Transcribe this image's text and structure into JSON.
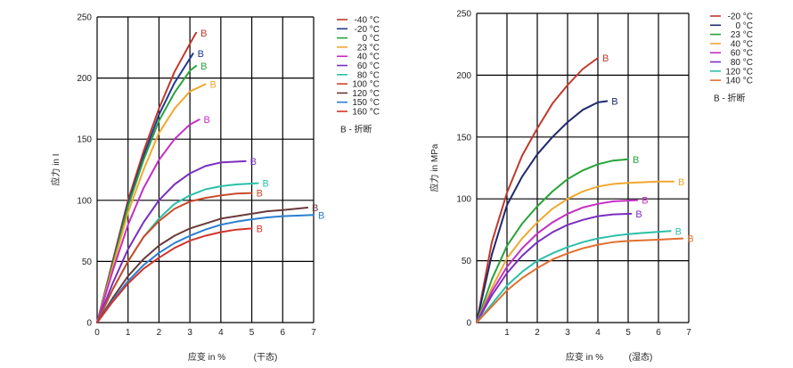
{
  "chart_data": [
    {
      "type": "line",
      "title": "",
      "xlabel": "应变 in %",
      "xlabel_note": "(干态)",
      "ylabel": "应力 in I",
      "xlim": [
        0,
        7
      ],
      "ylim": [
        0,
        250
      ],
      "xticks": [
        "0",
        "1",
        "2",
        "3",
        "4",
        "5",
        "6",
        "7"
      ],
      "yticks": [
        "0",
        "50",
        "100",
        "150",
        "200",
        "250"
      ],
      "grid": true,
      "legend_position": "right",
      "legend_note": "B - 折断",
      "break_marker": "B",
      "series": [
        {
          "name": "-40 °C",
          "color": "#c0392b",
          "break": true,
          "points": [
            [
              0,
              0
            ],
            [
              0.5,
              50
            ],
            [
              1,
              100
            ],
            [
              1.5,
              140
            ],
            [
              2,
              175
            ],
            [
              2.5,
              205
            ],
            [
              3,
              228
            ],
            [
              3.2,
              237
            ]
          ]
        },
        {
          "name": "-20 °C",
          "color": "#1f3a93",
          "break": true,
          "points": [
            [
              0,
              0
            ],
            [
              0.5,
              48
            ],
            [
              1,
              97
            ],
            [
              1.5,
              136
            ],
            [
              2,
              170
            ],
            [
              2.5,
              196
            ],
            [
              2.9,
              212
            ],
            [
              3.1,
              220
            ]
          ]
        },
        {
          "name": "0 °C",
          "color": "#27a33a",
          "break": true,
          "points": [
            [
              0,
              0
            ],
            [
              0.5,
              47
            ],
            [
              1,
              95
            ],
            [
              1.5,
              133
            ],
            [
              2,
              165
            ],
            [
              2.5,
              188
            ],
            [
              3,
              206
            ],
            [
              3.2,
              210
            ]
          ]
        },
        {
          "name": "23 °C",
          "color": "#f0a830",
          "break": true,
          "points": [
            [
              0,
              0
            ],
            [
              0.5,
              45
            ],
            [
              1,
              90
            ],
            [
              1.5,
              125
            ],
            [
              2,
              155
            ],
            [
              2.5,
              175
            ],
            [
              3,
              189
            ],
            [
              3.5,
              195
            ]
          ]
        },
        {
          "name": "40 °C",
          "color": "#c42fc4",
          "break": true,
          "points": [
            [
              0,
              0
            ],
            [
              0.5,
              42
            ],
            [
              1,
              80
            ],
            [
              1.5,
              110
            ],
            [
              2,
              133
            ],
            [
              2.5,
              150
            ],
            [
              3,
              162
            ],
            [
              3.3,
              166
            ]
          ]
        },
        {
          "name": "60 °C",
          "color": "#7a2fc0",
          "break": true,
          "points": [
            [
              0,
              0
            ],
            [
              0.5,
              32
            ],
            [
              1,
              60
            ],
            [
              1.5,
              82
            ],
            [
              2,
              100
            ],
            [
              2.5,
              113
            ],
            [
              3,
              122
            ],
            [
              3.5,
              128
            ],
            [
              4,
              131
            ],
            [
              4.8,
              132
            ]
          ]
        },
        {
          "name": "80 °C",
          "color": "#2bc0a8",
          "break": true,
          "points": [
            [
              0,
              0
            ],
            [
              0.5,
              27
            ],
            [
              1,
              50
            ],
            [
              1.5,
              70
            ],
            [
              2,
              85
            ],
            [
              2.5,
              97
            ],
            [
              3,
              104
            ],
            [
              3.5,
              109
            ],
            [
              4,
              111.5
            ],
            [
              4.5,
              113
            ],
            [
              5.2,
              114
            ]
          ]
        },
        {
          "name": "100 °C",
          "color": "#c94a2a",
          "break": true,
          "points": [
            [
              0,
              0
            ],
            [
              0.5,
              27
            ],
            [
              1,
              50
            ],
            [
              1.5,
              70
            ],
            [
              2,
              83
            ],
            [
              2.5,
              93
            ],
            [
              3,
              99
            ],
            [
              3.5,
              102
            ],
            [
              4,
              104
            ],
            [
              4.5,
              105.5
            ],
            [
              5,
              106
            ]
          ]
        },
        {
          "name": "120 °C",
          "color": "#6b3a3a",
          "break": true,
          "points": [
            [
              0,
              0
            ],
            [
              0.5,
              20
            ],
            [
              1,
              38
            ],
            [
              1.5,
              52
            ],
            [
              2,
              63
            ],
            [
              2.5,
              71
            ],
            [
              3,
              77
            ],
            [
              3.5,
              81
            ],
            [
              4,
              85
            ],
            [
              4.5,
              87
            ],
            [
              5,
              89
            ],
            [
              5.5,
              91
            ],
            [
              6,
              92
            ],
            [
              6.8,
              94
            ]
          ]
        },
        {
          "name": "150 °C",
          "color": "#2b7fd0",
          "break": true,
          "points": [
            [
              0,
              0
            ],
            [
              0.5,
              18
            ],
            [
              1,
              34
            ],
            [
              1.5,
              47
            ],
            [
              2,
              57
            ],
            [
              2.5,
              65
            ],
            [
              3,
              71
            ],
            [
              3.5,
              76
            ],
            [
              4,
              80
            ],
            [
              4.5,
              82.5
            ],
            [
              5,
              84.5
            ],
            [
              5.5,
              86
            ],
            [
              6,
              87
            ],
            [
              7,
              88
            ]
          ]
        },
        {
          "name": "160 °C",
          "color": "#d0342c",
          "break": true,
          "points": [
            [
              0,
              0
            ],
            [
              0.5,
              17
            ],
            [
              1,
              32
            ],
            [
              1.5,
              44
            ],
            [
              2,
              53
            ],
            [
              2.5,
              61
            ],
            [
              3,
              67
            ],
            [
              3.5,
              71
            ],
            [
              4,
              74
            ],
            [
              4.5,
              76
            ],
            [
              5,
              77
            ]
          ]
        }
      ]
    },
    {
      "type": "line",
      "title": "",
      "xlabel": "应变 in %",
      "xlabel_note": "(湿态)",
      "ylabel": "应力 in MPa",
      "xlim": [
        0,
        7
      ],
      "ylim": [
        0,
        250
      ],
      "xticks": [
        "1",
        "2",
        "3",
        "4",
        "5",
        "6",
        "7"
      ],
      "yticks": [
        "0",
        "50",
        "100",
        "150",
        "200",
        "250"
      ],
      "grid": true,
      "legend_position": "right",
      "legend_note": "B - 折断",
      "break_marker": "B",
      "series": [
        {
          "name": "-20 °C",
          "color": "#c0392b",
          "break": true,
          "points": [
            [
              0,
              0
            ],
            [
              0.5,
              65
            ],
            [
              1,
              105
            ],
            [
              1.5,
              135
            ],
            [
              2,
              157
            ],
            [
              2.5,
              177
            ],
            [
              3,
              192
            ],
            [
              3.5,
              205
            ],
            [
              4,
              214
            ]
          ]
        },
        {
          "name": "0 °C",
          "color": "#1f2a6b",
          "break": true,
          "points": [
            [
              0,
              0
            ],
            [
              0.5,
              55
            ],
            [
              1,
              95
            ],
            [
              1.5,
              118
            ],
            [
              2,
              136
            ],
            [
              2.5,
              150
            ],
            [
              3,
              162
            ],
            [
              3.5,
              172
            ],
            [
              4,
              178
            ],
            [
              4.3,
              179
            ]
          ]
        },
        {
          "name": "23 °C",
          "color": "#27a33a",
          "break": true,
          "points": [
            [
              0,
              0
            ],
            [
              0.5,
              35
            ],
            [
              1,
              62
            ],
            [
              1.5,
              80
            ],
            [
              2,
              94
            ],
            [
              2.5,
              106
            ],
            [
              3,
              116
            ],
            [
              3.5,
              123
            ],
            [
              4,
              128
            ],
            [
              4.5,
              131
            ],
            [
              5,
              132
            ]
          ]
        },
        {
          "name": "40 °C",
          "color": "#f0a830",
          "break": true,
          "points": [
            [
              0,
              0
            ],
            [
              0.5,
              28
            ],
            [
              1,
              52
            ],
            [
              1.5,
              68
            ],
            [
              2,
              81
            ],
            [
              2.5,
              92
            ],
            [
              3,
              100
            ],
            [
              3.5,
              106
            ],
            [
              4,
              110
            ],
            [
              4.5,
              112
            ],
            [
              5,
              113
            ],
            [
              6,
              114
            ],
            [
              6.5,
              114
            ]
          ]
        },
        {
          "name": "60 °C",
          "color": "#c42fc4",
          "break": true,
          "points": [
            [
              0,
              0
            ],
            [
              0.5,
              25
            ],
            [
              1,
              45
            ],
            [
              1.5,
              60
            ],
            [
              2,
              72
            ],
            [
              2.5,
              81
            ],
            [
              3,
              88
            ],
            [
              3.5,
              93
            ],
            [
              4,
              96
            ],
            [
              4.5,
              98
            ],
            [
              5.3,
              99
            ]
          ]
        },
        {
          "name": "80 °C",
          "color": "#7a2fc0",
          "break": true,
          "points": [
            [
              0,
              0
            ],
            [
              0.5,
              22
            ],
            [
              1,
              40
            ],
            [
              1.5,
              54
            ],
            [
              2,
              65
            ],
            [
              2.5,
              73
            ],
            [
              3,
              79
            ],
            [
              3.5,
              83
            ],
            [
              4,
              86
            ],
            [
              4.5,
              87.5
            ],
            [
              5.1,
              88
            ]
          ]
        },
        {
          "name": "120 °C",
          "color": "#2bc0a8",
          "break": true,
          "points": [
            [
              0,
              0
            ],
            [
              0.5,
              15
            ],
            [
              1,
              30
            ],
            [
              1.5,
              41
            ],
            [
              2,
              50
            ],
            [
              2.5,
              56
            ],
            [
              3,
              61
            ],
            [
              3.5,
              65
            ],
            [
              4,
              68
            ],
            [
              4.5,
              70
            ],
            [
              5,
              71.5
            ],
            [
              5.5,
              72.5
            ],
            [
              6.4,
              74
            ]
          ]
        },
        {
          "name": "140 °C",
          "color": "#e07030",
          "break": true,
          "points": [
            [
              0,
              0
            ],
            [
              0.5,
              13
            ],
            [
              1,
              26
            ],
            [
              1.5,
              36
            ],
            [
              2,
              44
            ],
            [
              2.5,
              51
            ],
            [
              3,
              56
            ],
            [
              3.5,
              60
            ],
            [
              4,
              63
            ],
            [
              4.5,
              65
            ],
            [
              5,
              66
            ],
            [
              6,
              67
            ],
            [
              6.8,
              68
            ]
          ]
        }
      ]
    }
  ]
}
